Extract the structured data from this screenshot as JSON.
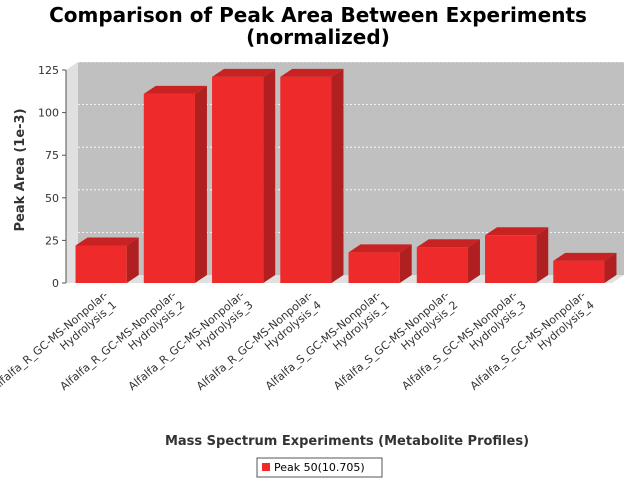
{
  "chart_data": {
    "type": "bar",
    "title_line1": "Comparison of Peak Area Between Experiments",
    "title_line2": "(normalized)",
    "xlabel": "Mass Spectrum Experiments (Metabolite Profiles)",
    "ylabel": "Peak Area (1e-3)",
    "ylim": [
      0,
      125
    ],
    "yticks": [
      "0",
      "25",
      "50",
      "75",
      "100",
      "125"
    ],
    "grid": true,
    "legend_position": "bottom",
    "categories": [
      [
        "Alfalfa_R_GC-MS-Nonpolar-",
        "Hydrolysis_1"
      ],
      [
        "Alfalfa_R_GC-MS-Nonpolar-",
        "Hydrolysis_2"
      ],
      [
        "Alfalfa_R_GC-MS-Nonpolar-",
        "Hydrolysis_3"
      ],
      [
        "Alfalfa_R_GC-MS-Nonpolar-",
        "Hydrolysis_4"
      ],
      [
        "Alfalfa_S_GC-MS-Nonpolar-",
        "Hydrolysis_1"
      ],
      [
        "Alfalfa_S_GC-MS-Nonpolar-",
        "Hydrolysis_2"
      ],
      [
        "Alfalfa_S_GC-MS-Nonpolar-",
        "Hydrolysis_3"
      ],
      [
        "Alfalfa_S_GC-MS-Nonpolar-",
        "Hydrolysis_4"
      ]
    ],
    "series": [
      {
        "name": "Peak 50(10.705)",
        "color": "#ee2a2a",
        "values": [
          22,
          111,
          121,
          121,
          18,
          21,
          28,
          13
        ]
      }
    ],
    "colors": {
      "plot_background": "#c0c0c0",
      "plot_wall": "#e0e0e0",
      "bar_side": "#b02020",
      "bar_top": "#c82222"
    }
  }
}
